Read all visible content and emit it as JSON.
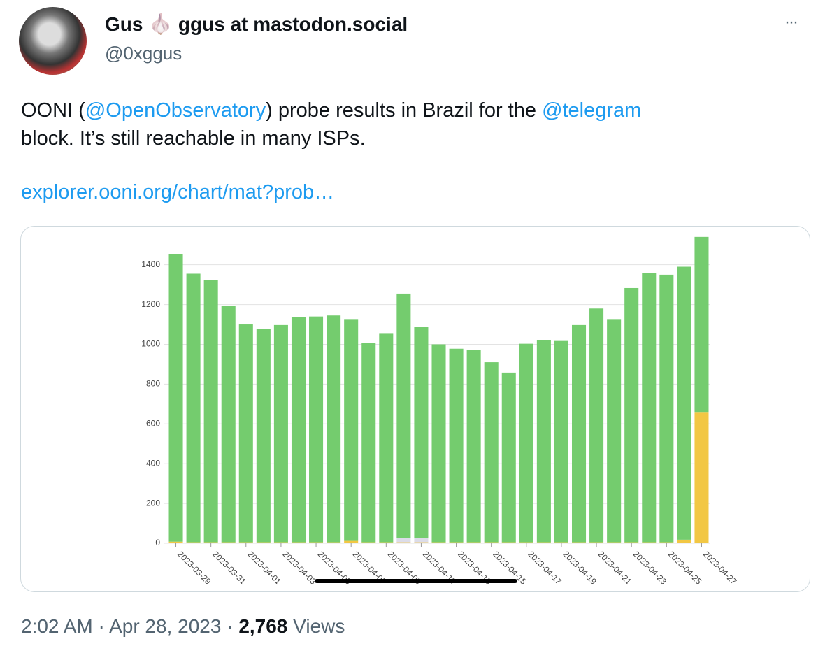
{
  "tweet": {
    "author_name": "Gus",
    "author_emoji": "🧄",
    "author_rest": "ggus at mastodon.social",
    "handle": "@0xggus",
    "more": "···",
    "text": [
      "OONI (",
      "@OpenObservatory",
      ") probe results in Brazil for the ",
      "@telegram",
      "block. It’s still reachable in many ISPs."
    ],
    "link": "explorer.ooni.org/chart/mat?prob…",
    "footer": [
      "2:02 AM",
      "·",
      "Apr 28, 2023",
      "·",
      "2,768",
      "Views"
    ]
  },
  "chart_data": {
    "type": "bar",
    "stacked": true,
    "grid": true,
    "categories": [
      "2023-03-29",
      null,
      "2023-03-31",
      null,
      "2023-04-01",
      null,
      "2023-04-03",
      null,
      "2023-04-05",
      null,
      "2023-04-07",
      null,
      "2023-04-09",
      null,
      "2023-04-11",
      null,
      "2023-04-13",
      null,
      "2023-04-15",
      null,
      "2023-04-17",
      null,
      "2023-04-19",
      null,
      "2023-04-21",
      null,
      "2023-04-23",
      null,
      "2023-04-25",
      null,
      "2023-04-27"
    ],
    "series": [
      {
        "color": "#f2c744",
        "values": [
          8,
          5,
          5,
          5,
          5,
          5,
          5,
          5,
          5,
          5,
          12,
          5,
          5,
          5,
          5,
          5,
          5,
          5,
          5,
          5,
          5,
          5,
          5,
          5,
          5,
          5,
          5,
          5,
          5,
          18,
          660
        ]
      },
      {
        "color": "#dcdce8",
        "values": [
          0,
          0,
          0,
          0,
          0,
          0,
          0,
          0,
          0,
          0,
          0,
          0,
          0,
          20,
          20,
          0,
          0,
          0,
          0,
          0,
          0,
          0,
          0,
          0,
          0,
          0,
          0,
          0,
          0,
          0,
          0
        ]
      },
      {
        "color": "#74cc6e",
        "values": [
          1447,
          1350,
          1317,
          1190,
          1095,
          1073,
          1092,
          1132,
          1135,
          1140,
          1115,
          1003,
          1048,
          1230,
          1062,
          995,
          973,
          968,
          905,
          853,
          998,
          1015,
          1012,
          1092,
          1175,
          1122,
          1278,
          1353,
          1345,
          1372,
          880
        ]
      }
    ],
    "ylim": [
      0,
      1550
    ],
    "yticks": [
      0,
      200,
      400,
      600,
      800,
      1000,
      1200,
      1400
    ]
  }
}
